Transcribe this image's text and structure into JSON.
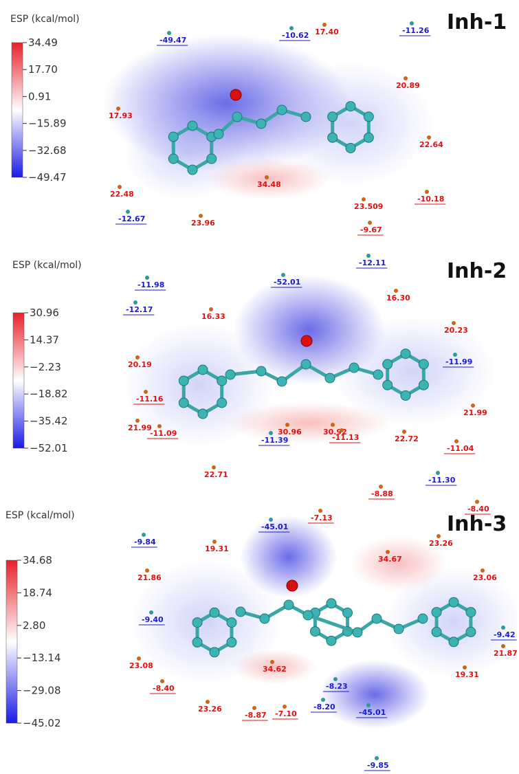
{
  "panels": [
    {
      "title": "Inh-1",
      "legend_title": "ESP (kcal/mol)",
      "colorbar_ticks": [
        "34.49",
        "17.70",
        "0.91",
        "−15.89",
        "−32.68",
        "−49.47"
      ],
      "labels": [
        "-49.47",
        "-10.62",
        "17.40",
        "-11.26",
        "20.89",
        "17.93",
        "22.64",
        "22.48",
        "34.48",
        "23.509",
        "-10.18",
        "23.96",
        "-12.67",
        "-9.67"
      ]
    },
    {
      "title": "Inh-2",
      "legend_title": "ESP (kcal/mol)",
      "colorbar_ticks": [
        "30.96",
        "14.37",
        "−2.23",
        "−18.82",
        "−35.42",
        "−52.01"
      ],
      "labels": [
        "-11.98",
        "-12.17",
        "16.33",
        "-52.01",
        "-12.11",
        "16.30",
        "20.23",
        "20.19",
        "-11.99",
        "-11.16",
        "21.99",
        "30.96",
        "30.92",
        "21.99",
        "-11.09",
        "-11.39",
        "-11.13",
        "22.72",
        "-11.04",
        "22.71",
        "-11.30"
      ]
    },
    {
      "title": "Inh-3",
      "legend_title": "ESP (kcal/mol)",
      "colorbar_ticks": [
        "34.68",
        "18.74",
        "2.80",
        "−13.14",
        "−29.08",
        "−45.02"
      ],
      "labels": [
        "-45.01",
        "-7.13",
        "-8.88",
        "23.26",
        "-8.40",
        "-9.84",
        "19.31",
        "21.86",
        "34.67",
        "23.06",
        "-9.40",
        "-9.42",
        "21.87",
        "23.08",
        "34.62",
        "-8.23",
        "19.31",
        "-8.40",
        "-8.20",
        "-45.01",
        "-7.10",
        "23.26",
        "-8.87",
        "-9.85"
      ]
    }
  ]
}
